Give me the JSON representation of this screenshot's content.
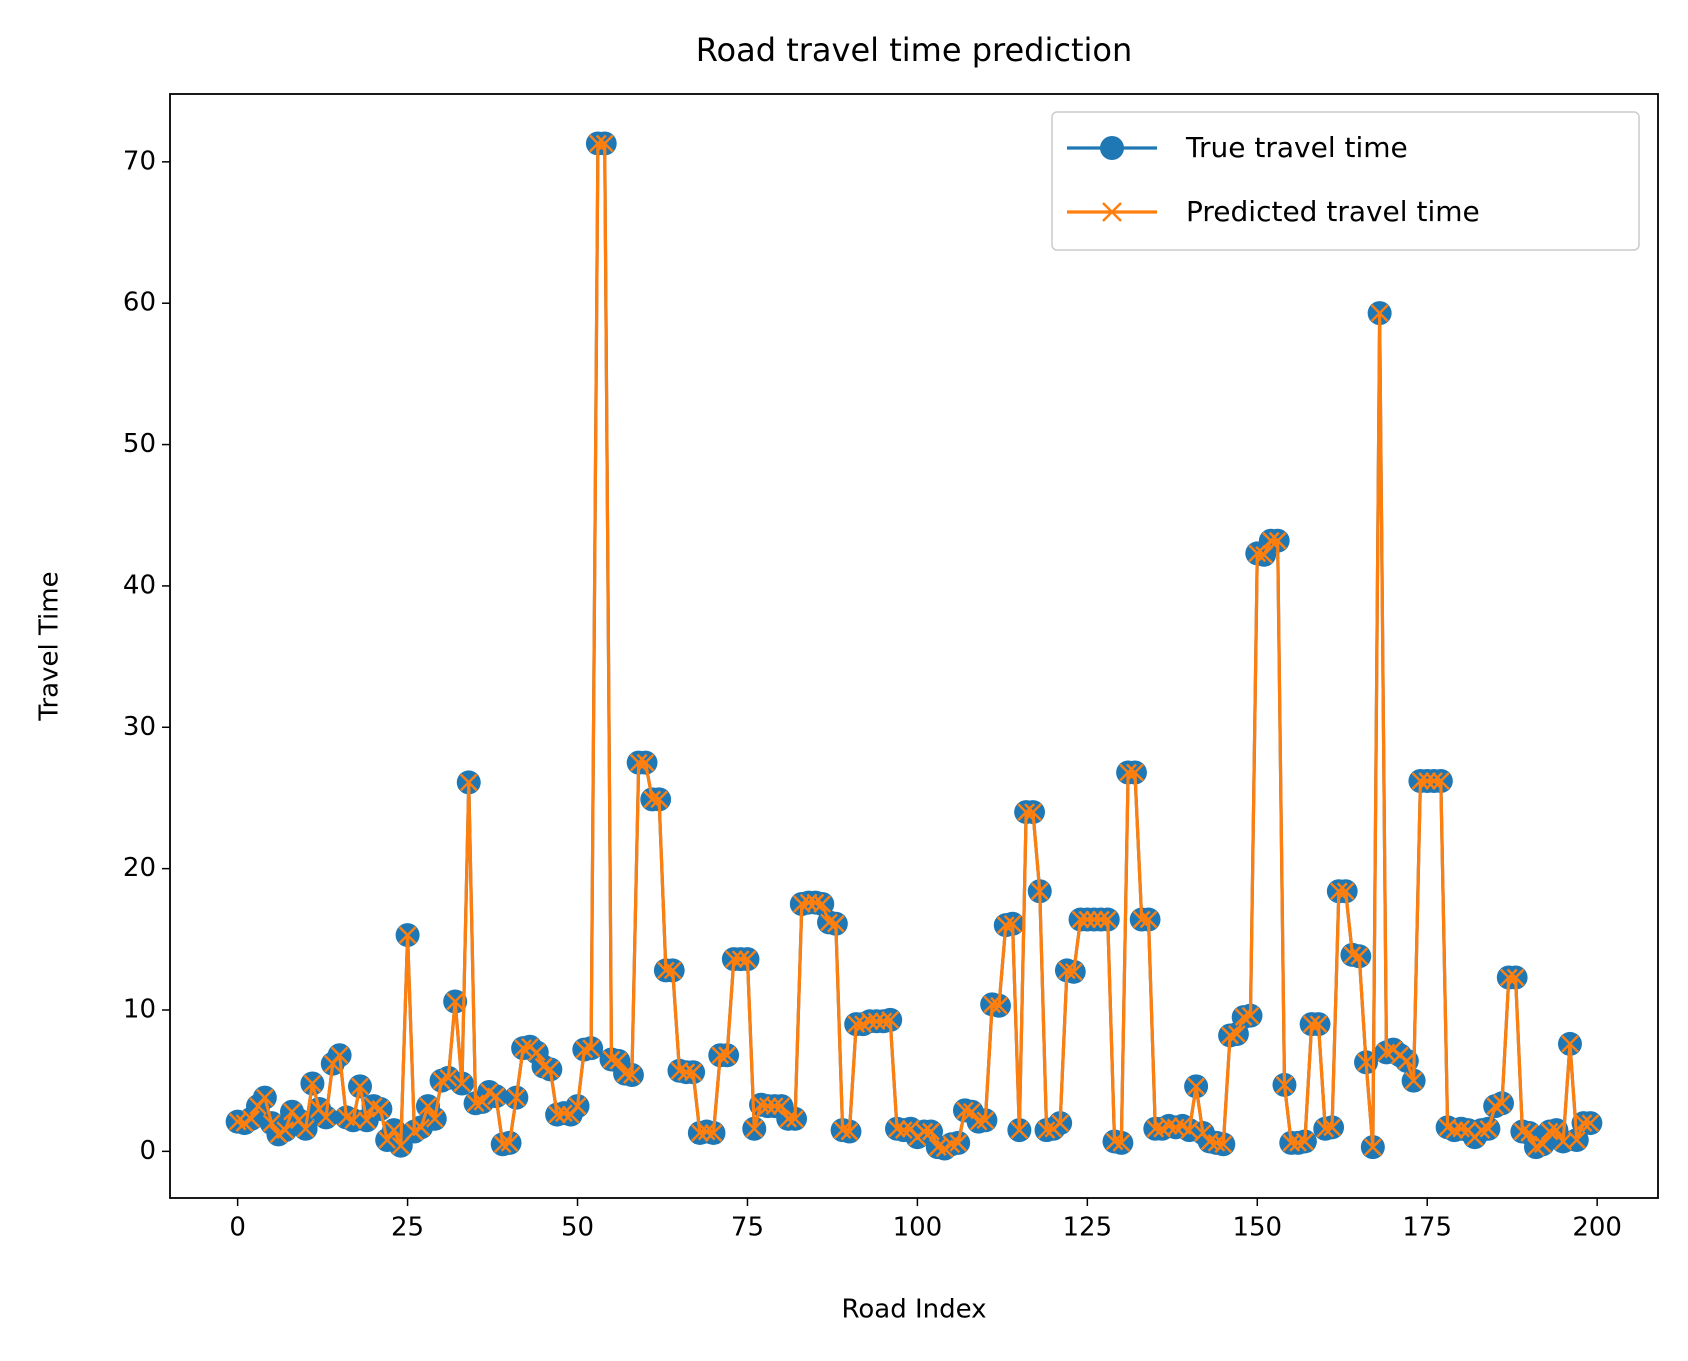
{
  "chart_data": {
    "type": "line",
    "title": "Road travel time prediction",
    "xlabel": "Road Index",
    "ylabel": "Travel Time",
    "x": [
      0,
      1,
      2,
      3,
      4,
      5,
      6,
      7,
      8,
      9,
      10,
      11,
      12,
      13,
      14,
      15,
      16,
      17,
      18,
      19,
      20,
      21,
      22,
      23,
      24,
      25,
      26,
      27,
      28,
      29,
      30,
      31,
      32,
      33,
      34,
      35,
      36,
      37,
      38,
      39,
      40,
      41,
      42,
      43,
      44,
      45,
      46,
      47,
      48,
      49,
      50,
      51,
      52,
      53,
      54,
      55,
      56,
      57,
      58,
      59,
      60,
      61,
      62,
      63,
      64,
      65,
      66,
      67,
      68,
      69,
      70,
      71,
      72,
      73,
      74,
      75,
      76,
      77,
      78,
      79,
      80,
      81,
      82,
      83,
      84,
      85,
      86,
      87,
      88,
      89,
      90,
      91,
      92,
      93,
      94,
      95,
      96,
      97,
      98,
      99,
      100,
      101,
      102,
      103,
      104,
      105,
      106,
      107,
      108,
      109,
      110,
      111,
      112,
      113,
      114,
      115,
      116,
      117,
      118,
      119,
      120,
      121,
      122,
      123,
      124,
      125,
      126,
      127,
      128,
      129,
      130,
      131,
      132,
      133,
      134,
      135,
      136,
      137,
      138,
      139,
      140,
      141,
      142,
      143,
      144,
      145,
      146,
      147,
      148,
      149,
      150,
      151,
      152,
      153,
      154,
      155,
      156,
      157,
      158,
      159,
      160,
      161,
      162,
      163,
      164,
      165,
      166,
      167,
      168,
      169,
      170,
      171,
      172,
      173,
      174,
      175,
      176,
      177,
      178,
      179,
      180,
      181,
      182,
      183,
      184,
      185,
      186,
      187,
      188,
      189,
      190,
      191,
      192,
      193,
      194,
      195,
      196,
      197,
      198,
      199
    ],
    "series": [
      {
        "name": "True travel time",
        "color": "#1f77b4",
        "marker": "circle",
        "values": [
          2.1,
          2.0,
          2.3,
          3.2,
          3.8,
          2.0,
          1.2,
          1.5,
          2.8,
          2.2,
          1.6,
          4.8,
          3.0,
          2.4,
          6.2,
          6.8,
          2.4,
          2.2,
          4.6,
          2.2,
          3.2,
          3.0,
          0.8,
          1.5,
          0.4,
          15.3,
          1.4,
          1.7,
          3.2,
          2.3,
          5.0,
          5.2,
          10.6,
          4.8,
          26.1,
          3.4,
          3.5,
          4.2,
          3.9,
          0.5,
          0.6,
          3.8,
          7.3,
          7.4,
          7.0,
          6.0,
          5.8,
          2.6,
          2.7,
          2.6,
          3.2,
          7.2,
          7.3,
          71.3,
          71.3,
          6.5,
          6.4,
          5.5,
          5.4,
          27.5,
          27.5,
          24.9,
          24.9,
          12.8,
          12.8,
          5.7,
          5.6,
          5.6,
          1.3,
          1.4,
          1.3,
          6.8,
          6.8,
          13.6,
          13.6,
          13.6,
          1.6,
          3.3,
          3.2,
          3.2,
          3.2,
          2.3,
          2.3,
          17.5,
          17.6,
          17.6,
          17.5,
          16.2,
          16.1,
          1.5,
          1.4,
          9.0,
          9.0,
          9.2,
          9.2,
          9.2,
          9.3,
          1.6,
          1.5,
          1.6,
          1.0,
          1.4,
          1.4,
          0.3,
          0.2,
          0.5,
          0.6,
          2.9,
          2.8,
          2.1,
          2.2,
          10.4,
          10.3,
          16.0,
          16.1,
          1.5,
          24.0,
          24.0,
          18.4,
          1.5,
          1.6,
          2.0,
          12.8,
          12.7,
          16.4,
          16.4,
          16.4,
          16.4,
          16.4,
          0.7,
          0.6,
          26.8,
          26.8,
          16.4,
          16.4,
          1.6,
          1.6,
          1.8,
          1.7,
          1.8,
          1.5,
          4.6,
          1.3,
          0.7,
          0.6,
          0.5,
          8.2,
          8.3,
          9.5,
          9.6,
          42.3,
          42.2,
          43.2,
          43.2,
          4.7,
          0.6,
          0.6,
          0.7,
          9.0,
          9.0,
          1.6,
          1.7,
          18.4,
          18.4,
          13.9,
          13.8,
          6.3,
          0.3,
          59.3,
          7.0,
          7.2,
          6.8,
          6.4,
          5.0,
          26.2,
          26.2,
          26.2,
          26.2,
          1.7,
          1.5,
          1.6,
          1.5,
          1.0,
          1.5,
          1.6,
          3.2,
          3.4,
          12.3,
          12.3,
          1.4,
          1.3,
          0.3,
          0.5,
          1.4,
          1.5,
          0.7,
          7.6,
          0.8,
          2.0,
          2.0
        ]
      },
      {
        "name": "Predicted travel time",
        "color": "#ff7f0e",
        "marker": "x",
        "values": [
          2.1,
          2.0,
          2.3,
          3.2,
          3.8,
          2.0,
          1.2,
          1.5,
          2.8,
          2.2,
          1.6,
          4.8,
          3.0,
          2.4,
          6.2,
          6.8,
          2.4,
          2.2,
          4.6,
          2.2,
          3.2,
          3.0,
          0.8,
          1.5,
          0.4,
          15.3,
          1.4,
          1.7,
          3.2,
          2.3,
          5.0,
          5.2,
          10.6,
          4.8,
          26.1,
          3.4,
          3.5,
          4.2,
          3.9,
          0.5,
          0.6,
          3.8,
          7.3,
          7.4,
          7.0,
          6.0,
          5.8,
          2.6,
          2.7,
          2.6,
          3.2,
          7.2,
          7.3,
          71.3,
          71.3,
          6.5,
          6.4,
          5.5,
          5.4,
          27.5,
          27.5,
          24.9,
          24.9,
          12.8,
          12.8,
          5.7,
          5.6,
          5.6,
          1.3,
          1.4,
          1.3,
          6.8,
          6.8,
          13.6,
          13.6,
          13.6,
          1.6,
          3.3,
          3.2,
          3.2,
          3.2,
          2.3,
          2.3,
          17.5,
          17.6,
          17.6,
          17.5,
          16.2,
          16.1,
          1.5,
          1.4,
          9.0,
          9.0,
          9.2,
          9.2,
          9.2,
          9.3,
          1.6,
          1.5,
          1.6,
          1.0,
          1.4,
          1.4,
          0.3,
          0.2,
          0.5,
          0.6,
          2.9,
          2.8,
          2.1,
          2.2,
          10.4,
          10.3,
          16.0,
          16.1,
          1.5,
          24.0,
          24.0,
          18.4,
          1.5,
          1.6,
          2.0,
          12.8,
          12.7,
          16.4,
          16.4,
          16.4,
          16.4,
          16.4,
          0.7,
          0.6,
          26.8,
          26.8,
          16.4,
          16.4,
          1.6,
          1.6,
          1.8,
          1.7,
          1.8,
          1.5,
          4.6,
          1.3,
          0.7,
          0.6,
          0.5,
          8.2,
          8.3,
          9.5,
          9.6,
          42.3,
          42.2,
          43.2,
          43.2,
          4.7,
          0.6,
          0.6,
          0.7,
          9.0,
          9.0,
          1.6,
          1.7,
          18.4,
          18.4,
          13.9,
          13.8,
          6.3,
          0.3,
          59.3,
          7.0,
          7.2,
          6.8,
          6.4,
          5.0,
          26.2,
          26.2,
          26.2,
          26.2,
          1.7,
          1.5,
          1.6,
          1.5,
          1.0,
          1.5,
          1.6,
          3.2,
          3.4,
          12.3,
          12.3,
          1.4,
          1.3,
          0.3,
          0.5,
          1.4,
          1.5,
          0.7,
          7.6,
          0.8,
          2.0,
          2.0
        ]
      }
    ],
    "xlim": [
      -9.95,
      208.95
    ],
    "xticks": [
      0,
      25,
      50,
      75,
      100,
      125,
      150,
      175,
      200
    ],
    "ylim": [
      -3.3,
      74.8
    ],
    "yticks": [
      0,
      10,
      20,
      30,
      40,
      50,
      60,
      70
    ],
    "legend": "upper right"
  }
}
